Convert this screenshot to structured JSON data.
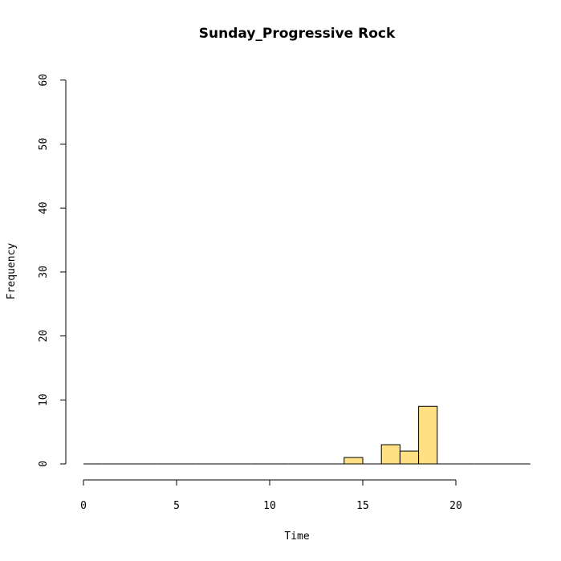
{
  "chart_data": {
    "type": "bar",
    "title": "Sunday_Progressive Rock",
    "xlabel": "Time",
    "ylabel": "Frequency",
    "bin_width": 1,
    "bins": [
      {
        "start": 0,
        "count": 0
      },
      {
        "start": 1,
        "count": 0
      },
      {
        "start": 2,
        "count": 0
      },
      {
        "start": 3,
        "count": 0
      },
      {
        "start": 4,
        "count": 0
      },
      {
        "start": 5,
        "count": 0
      },
      {
        "start": 6,
        "count": 0
      },
      {
        "start": 7,
        "count": 0
      },
      {
        "start": 8,
        "count": 0
      },
      {
        "start": 9,
        "count": 0
      },
      {
        "start": 10,
        "count": 0
      },
      {
        "start": 11,
        "count": 0
      },
      {
        "start": 12,
        "count": 0
      },
      {
        "start": 13,
        "count": 0
      },
      {
        "start": 14,
        "count": 1
      },
      {
        "start": 15,
        "count": 0
      },
      {
        "start": 16,
        "count": 3
      },
      {
        "start": 17,
        "count": 2
      },
      {
        "start": 18,
        "count": 9
      },
      {
        "start": 19,
        "count": 0
      },
      {
        "start": 20,
        "count": 0
      },
      {
        "start": 21,
        "count": 0
      },
      {
        "start": 22,
        "count": 0
      },
      {
        "start": 23,
        "count": 0
      }
    ],
    "xlim": [
      0,
      24
    ],
    "ylim": [
      0,
      60
    ],
    "xticks": [
      0,
      5,
      10,
      15,
      20
    ],
    "yticks": [
      0,
      10,
      20,
      30,
      40,
      50,
      60
    ],
    "bar_color": "#ffe082",
    "grid": false
  }
}
